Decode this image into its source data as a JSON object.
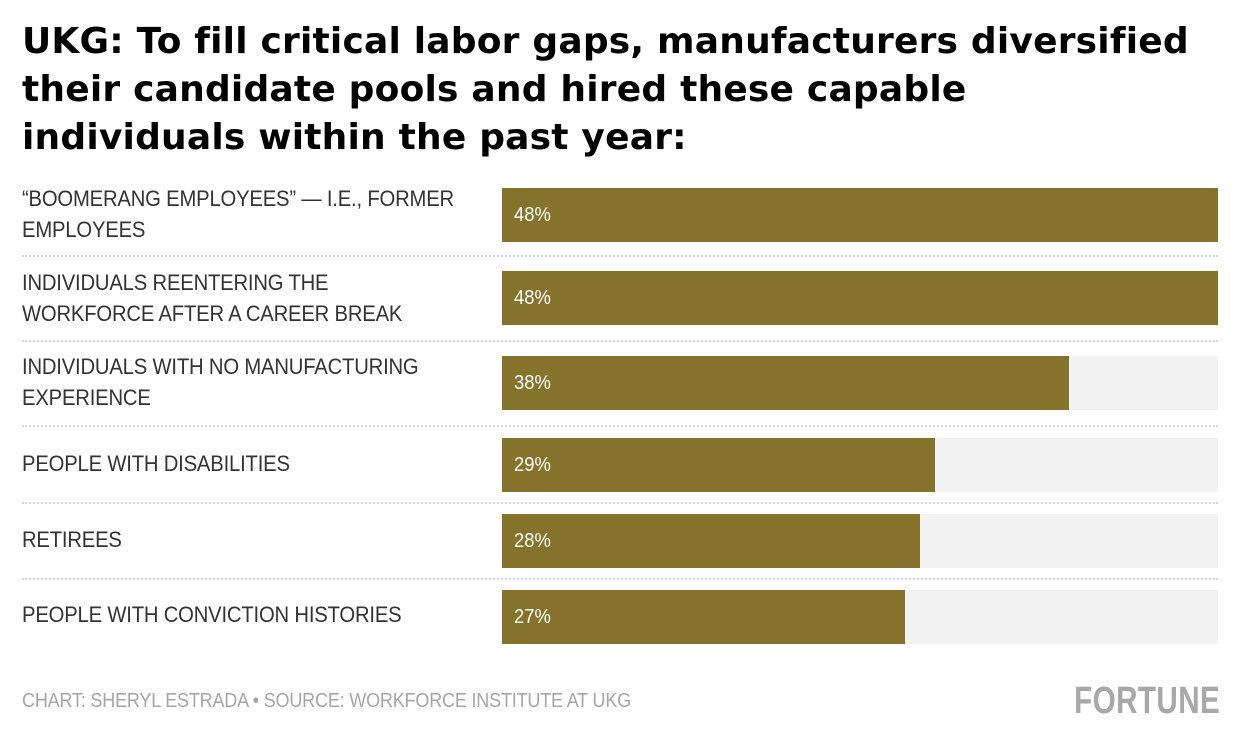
{
  "chart_data": {
    "type": "bar",
    "orientation": "horizontal",
    "title": "UKG: To fill critical labor gaps, manufacturers diversified their candidate pools and hired these capable individuals within the past year:",
    "categories": [
      "“BOOMERANG EMPLOYEES” — I.E., FORMER EMPLOYEES",
      "INDIVIDUALS REENTERING THE WORKFORCE AFTER A CAREER BREAK",
      "INDIVIDUALS WITH NO MANUFACTURING EXPERIENCE",
      "PEOPLE WITH DISABILITIES",
      "RETIREES",
      "PEOPLE WITH CONVICTION HISTORIES"
    ],
    "values": [
      48,
      48,
      38,
      29,
      28,
      27
    ],
    "value_labels": [
      "48%",
      "48%",
      "38%",
      "29%",
      "28%",
      "27%"
    ],
    "unit": "%",
    "xlim": [
      0,
      48
    ],
    "xlabel": "",
    "ylabel": "",
    "grid": false,
    "legend": "none",
    "bar_color": "#85732b",
    "track_color": "#f2f2f2"
  },
  "footer": {
    "credit": "CHART: SHERYL ESTRADA • SOURCE: WORKFORCE INSTITUTE AT UKG",
    "logo": "FORTUNE"
  }
}
